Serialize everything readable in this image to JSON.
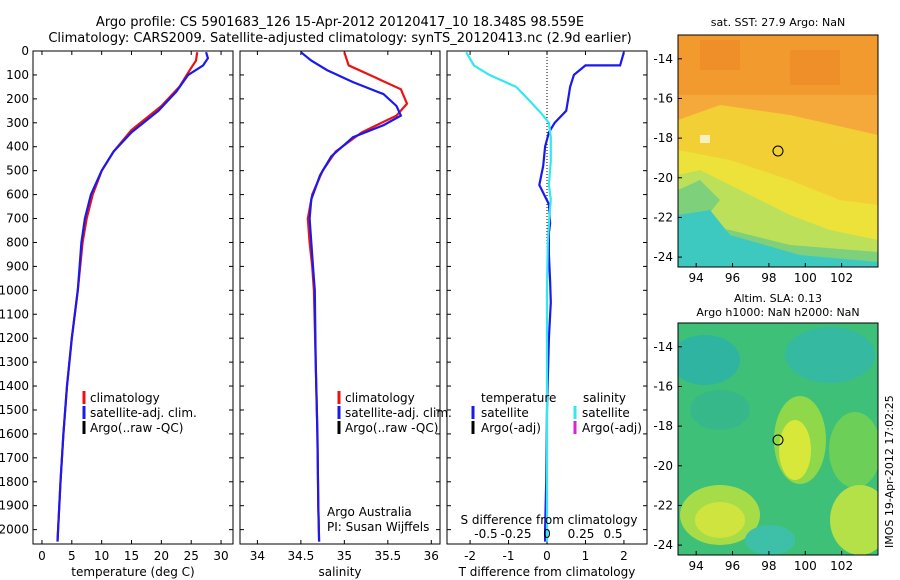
{
  "header": {
    "title_line1": "Argo profile: CS 5901683_126 15-Apr-2012 20120417_10 18.348S 98.559E",
    "title_line2": "Climatology: CARS2009. Satellite-adjusted climatology: synTS_20120413.nc (2.9d earlier)"
  },
  "side_text": "IMOS 19-Apr-2012 17:02:25",
  "colors": {
    "climatology": "#ee1111",
    "satellite": "#1a1aee",
    "argo": "#000000",
    "salinity_satellite": "#33e8f0",
    "salinity_argo": "#dd22dd"
  },
  "chart_data": [
    {
      "type": "line",
      "id": "temperature-profile",
      "xlabel": "temperature (deg C)",
      "xlim": [
        -1.5,
        32
      ],
      "xticks": [
        0,
        5,
        10,
        15,
        20,
        25,
        30
      ],
      "ylim": [
        2060,
        0
      ],
      "yticks": [
        0,
        100,
        200,
        300,
        400,
        500,
        600,
        700,
        800,
        900,
        1000,
        1100,
        1200,
        1300,
        1400,
        1500,
        1600,
        1700,
        1800,
        1900,
        2000
      ],
      "legend": [
        "climatology",
        "satellite-adj. clim.",
        "Argo(..raw -QC)"
      ],
      "series": [
        {
          "name": "climatology",
          "color": "#ee1111",
          "points": [
            [
              26,
              5
            ],
            [
              25.8,
              40
            ],
            [
              25,
              70
            ],
            [
              23,
              150
            ],
            [
              20,
              230
            ],
            [
              15,
              330
            ],
            [
              12,
              420
            ],
            [
              10,
              500
            ],
            [
              8.5,
              600
            ],
            [
              7.5,
              700
            ],
            [
              6.8,
              800
            ],
            [
              6,
              1000
            ],
            [
              5,
              1200
            ],
            [
              4.2,
              1400
            ],
            [
              3.6,
              1600
            ],
            [
              3.1,
              1800
            ],
            [
              2.7,
              2000
            ],
            [
              2.6,
              2050
            ]
          ]
        },
        {
          "name": "satellite-adj. clim.",
          "color": "#1a1aee",
          "points": [
            [
              27.5,
              5
            ],
            [
              27.8,
              30
            ],
            [
              27,
              60
            ],
            [
              24.5,
              100
            ],
            [
              22.5,
              170
            ],
            [
              19.5,
              250
            ],
            [
              15,
              340
            ],
            [
              12,
              420
            ],
            [
              10,
              500
            ],
            [
              8.2,
              600
            ],
            [
              7.2,
              700
            ],
            [
              6.6,
              800
            ],
            [
              6,
              1000
            ],
            [
              5,
              1200
            ],
            [
              4.2,
              1400
            ],
            [
              3.6,
              1600
            ],
            [
              3.1,
              1800
            ],
            [
              2.7,
              2000
            ],
            [
              2.6,
              2050
            ]
          ]
        },
        {
          "name": "Argo(..raw -QC)",
          "color": "#000000",
          "points": []
        }
      ]
    },
    {
      "type": "line",
      "id": "salinity-profile",
      "xlabel": "salinity",
      "xlim": [
        33.8,
        36.1
      ],
      "xticks": [
        34,
        34.5,
        35,
        35.5,
        36
      ],
      "ylim": [
        2060,
        0
      ],
      "legend": [
        "climatology",
        "satellite-adj. clim.",
        "Argo(..raw -QC)"
      ],
      "annotation": [
        "Argo Australia",
        "PI: Susan Wijffels"
      ],
      "series": [
        {
          "name": "climatology",
          "color": "#ee1111",
          "points": [
            [
              35.0,
              5
            ],
            [
              35.05,
              60
            ],
            [
              35.35,
              110
            ],
            [
              35.65,
              160
            ],
            [
              35.72,
              220
            ],
            [
              35.6,
              270
            ],
            [
              35.2,
              340
            ],
            [
              34.9,
              420
            ],
            [
              34.75,
              500
            ],
            [
              34.63,
              600
            ],
            [
              34.58,
              700
            ],
            [
              34.6,
              800
            ],
            [
              34.63,
              900
            ],
            [
              34.65,
              1000
            ],
            [
              34.67,
              1300
            ],
            [
              34.69,
              1600
            ],
            [
              34.7,
              1900
            ],
            [
              34.71,
              2050
            ]
          ]
        },
        {
          "name": "satellite-adj. clim.",
          "color": "#1a1aee",
          "points": [
            [
              34.5,
              5
            ],
            [
              34.62,
              40
            ],
            [
              34.8,
              80
            ],
            [
              35.1,
              130
            ],
            [
              35.45,
              180
            ],
            [
              35.6,
              230
            ],
            [
              35.65,
              270
            ],
            [
              35.45,
              310
            ],
            [
              35.1,
              360
            ],
            [
              34.85,
              440
            ],
            [
              34.72,
              520
            ],
            [
              34.62,
              620
            ],
            [
              34.6,
              700
            ],
            [
              34.62,
              800
            ],
            [
              34.64,
              900
            ],
            [
              34.66,
              1000
            ],
            [
              34.67,
              1300
            ],
            [
              34.69,
              1600
            ],
            [
              34.7,
              1900
            ],
            [
              34.71,
              2050
            ]
          ]
        },
        {
          "name": "Argo(..raw -QC)",
          "color": "#000000",
          "points": []
        }
      ]
    },
    {
      "type": "line",
      "id": "difference-profile",
      "xlabel": "T difference from climatology",
      "xlabel_top": "S difference from climatology",
      "xlim": [
        -2.6,
        2.6
      ],
      "xticks": [
        -2,
        -1,
        0,
        1,
        2
      ],
      "xticks_top": [
        "-0.5",
        "-0.25",
        "0",
        "0.25",
        "0.5"
      ],
      "ylim": [
        2060,
        0
      ],
      "legend_headers": [
        "temperature",
        "salinity"
      ],
      "legend": [
        "satellite",
        "Argo(-adj)",
        "satellite",
        "Argo(-adj)"
      ],
      "series": [
        {
          "name": "temperature satellite",
          "color": "#1a1aee",
          "points": [
            [
              2.0,
              5
            ],
            [
              1.9,
              60
            ],
            [
              1.0,
              60
            ],
            [
              0.7,
              100
            ],
            [
              0.6,
              150
            ],
            [
              0.55,
              200
            ],
            [
              0.5,
              250
            ],
            [
              0.2,
              300
            ],
            [
              0.05,
              340
            ],
            [
              -0.05,
              400
            ],
            [
              -0.1,
              480
            ],
            [
              -0.2,
              560
            ],
            [
              0.05,
              640
            ],
            [
              0.08,
              720
            ],
            [
              0.05,
              760
            ],
            [
              0.05,
              850
            ],
            [
              0.08,
              960
            ],
            [
              0.1,
              1050
            ],
            [
              0.05,
              1200
            ],
            [
              0.0,
              1500
            ],
            [
              -0.02,
              1800
            ],
            [
              -0.05,
              2000
            ],
            [
              -0.05,
              2050
            ]
          ]
        },
        {
          "name": "salinity satellite",
          "color": "#33e8f0",
          "points": [
            [
              -2.1,
              5
            ],
            [
              -1.9,
              60
            ],
            [
              -1.5,
              100
            ],
            [
              -0.8,
              150
            ],
            [
              -0.5,
              200
            ],
            [
              -0.15,
              260
            ],
            [
              0.05,
              300
            ],
            [
              0.1,
              360
            ],
            [
              0.1,
              460
            ],
            [
              0.05,
              560
            ],
            [
              0.1,
              620
            ],
            [
              0.05,
              720
            ],
            [
              0.02,
              800
            ],
            [
              0.0,
              1000
            ],
            [
              0.0,
              1500
            ],
            [
              0.0,
              2050
            ]
          ]
        },
        {
          "name": "temperature Argo(-adj)",
          "color": "#000000",
          "points": []
        },
        {
          "name": "salinity Argo(-adj)",
          "color": "#dd22dd",
          "points": []
        }
      ]
    },
    {
      "type": "heatmap",
      "id": "sst-map",
      "title": "sat. SST: 27.9  Argo: NaN",
      "xlim": [
        93,
        104
      ],
      "ylim": [
        -24.5,
        -12.8
      ],
      "xticks": [
        94,
        96,
        98,
        100,
        102
      ],
      "yticks": [
        -14,
        -16,
        -18,
        -20,
        -22,
        -24
      ],
      "marker": [
        98.559,
        -18.348
      ]
    },
    {
      "type": "heatmap",
      "id": "sla-map",
      "title_line1": "Altim. SLA: 0.13",
      "title_line2": "Argo h1000: NaN  h2000: NaN",
      "xlim": [
        93,
        104
      ],
      "ylim": [
        -24.5,
        -12.8
      ],
      "xticks": [
        94,
        96,
        98,
        100,
        102
      ],
      "yticks": [
        -14,
        -16,
        -18,
        -20,
        -22,
        -24
      ],
      "marker": [
        98.559,
        -18.348
      ]
    }
  ]
}
